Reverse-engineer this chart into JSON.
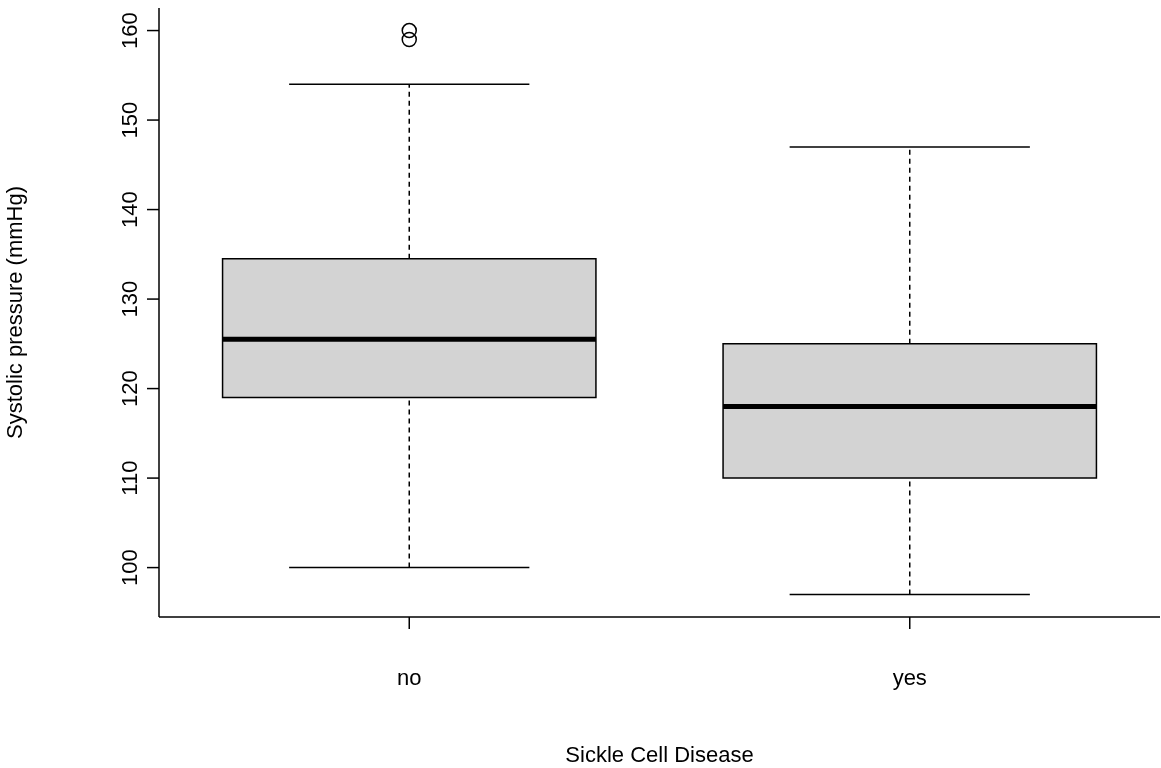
{
  "chart_data": {
    "type": "box",
    "xlabel": "Sickle Cell Disease",
    "ylabel": "Systolic pressure (mmHg)",
    "categories": [
      "no",
      "yes"
    ],
    "color": "#d3d3d3",
    "boxes": [
      {
        "low": 100,
        "q1": 119,
        "median": 125.5,
        "q3": 134.5,
        "high": 154,
        "outliers": [
          159,
          160
        ]
      },
      {
        "low": 97,
        "q1": 110,
        "median": 118,
        "q3": 125,
        "high": 147
      }
    ],
    "ylim": [
      94.48,
      162.52
    ],
    "yticks": [
      100,
      110,
      120,
      130,
      140,
      150,
      160
    ],
    "grid": false
  }
}
